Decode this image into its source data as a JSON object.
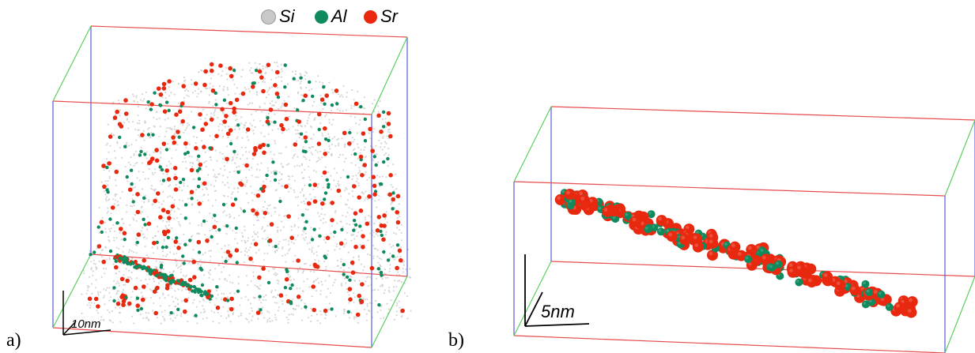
{
  "legend": {
    "items": [
      {
        "label": "Si",
        "color": "#c8c8c8"
      },
      {
        "label": "Al",
        "color": "#0f8a5c"
      },
      {
        "label": "Sr",
        "color": "#e8290f"
      }
    ]
  },
  "panels": {
    "a": {
      "label": "a)",
      "scale_label": "10nm"
    },
    "b": {
      "label": "b)",
      "scale_label": "5nm"
    }
  },
  "colors": {
    "box_front_back": "#e84c4c",
    "box_sides": "#5b5bd8",
    "box_depth": "#5ad05a",
    "si": "#c8c8c8",
    "al": "#0f8a5c",
    "sr": "#e8290f"
  }
}
